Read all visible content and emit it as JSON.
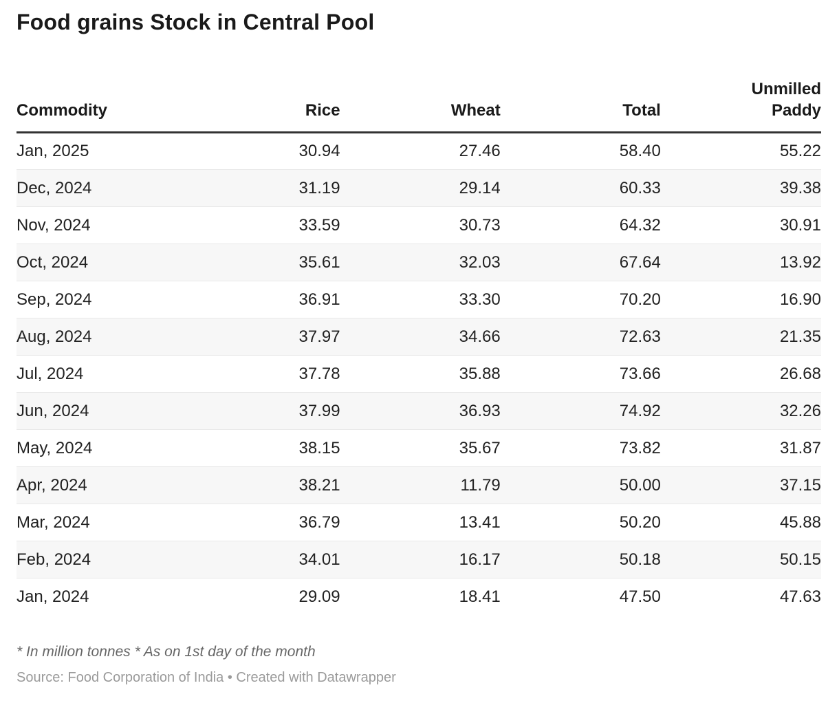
{
  "title": "Food grains Stock in Central Pool",
  "table": {
    "columns": [
      "Commodity",
      "Rice",
      "Wheat",
      "Total",
      "Unmilled Paddy"
    ],
    "rows": [
      {
        "month": "Jan, 2025",
        "rice": "30.94",
        "wheat": "27.46",
        "total": "58.40",
        "unmilled_paddy": "55.22"
      },
      {
        "month": "Dec, 2024",
        "rice": "31.19",
        "wheat": "29.14",
        "total": "60.33",
        "unmilled_paddy": "39.38"
      },
      {
        "month": "Nov, 2024",
        "rice": "33.59",
        "wheat": "30.73",
        "total": "64.32",
        "unmilled_paddy": "30.91"
      },
      {
        "month": "Oct, 2024",
        "rice": "35.61",
        "wheat": "32.03",
        "total": "67.64",
        "unmilled_paddy": "13.92"
      },
      {
        "month": "Sep, 2024",
        "rice": "36.91",
        "wheat": "33.30",
        "total": "70.20",
        "unmilled_paddy": "16.90"
      },
      {
        "month": "Aug, 2024",
        "rice": "37.97",
        "wheat": "34.66",
        "total": "72.63",
        "unmilled_paddy": "21.35"
      },
      {
        "month": "Jul, 2024",
        "rice": "37.78",
        "wheat": "35.88",
        "total": "73.66",
        "unmilled_paddy": "26.68"
      },
      {
        "month": "Jun, 2024",
        "rice": "37.99",
        "wheat": "36.93",
        "total": "74.92",
        "unmilled_paddy": "32.26"
      },
      {
        "month": "May, 2024",
        "rice": "38.15",
        "wheat": "35.67",
        "total": "73.82",
        "unmilled_paddy": "31.87"
      },
      {
        "month": "Apr, 2024",
        "rice": "38.21",
        "wheat": "11.79",
        "total": "50.00",
        "unmilled_paddy": "37.15"
      },
      {
        "month": "Mar, 2024",
        "rice": "36.79",
        "wheat": "13.41",
        "total": "50.20",
        "unmilled_paddy": "45.88"
      },
      {
        "month": "Feb, 2024",
        "rice": "34.01",
        "wheat": "16.17",
        "total": "50.18",
        "unmilled_paddy": "50.15"
      },
      {
        "month": "Jan, 2024",
        "rice": "29.09",
        "wheat": "18.41",
        "total": "47.50",
        "unmilled_paddy": "47.63"
      }
    ]
  },
  "footnote": "* In million tonnes * As on 1st day of the month",
  "source": "Source: Food Corporation of India • Created with Datawrapper",
  "colors": {
    "header_border": "#333333",
    "row_divider": "#e8e8e8",
    "zebra_row": "#f7f7f7",
    "title_text": "#1a1a1a",
    "body_text": "#222222",
    "footnote_text": "#666666",
    "source_text": "#9a9a9a"
  },
  "chart_data": {
    "type": "table",
    "title": "Food grains Stock in Central Pool",
    "categories": [
      "Jan, 2025",
      "Dec, 2024",
      "Nov, 2024",
      "Oct, 2024",
      "Sep, 2024",
      "Aug, 2024",
      "Jul, 2024",
      "Jun, 2024",
      "May, 2024",
      "Apr, 2024",
      "Mar, 2024",
      "Feb, 2024",
      "Jan, 2024"
    ],
    "series": [
      {
        "name": "Rice",
        "values": [
          30.94,
          31.19,
          33.59,
          35.61,
          36.91,
          37.97,
          37.78,
          37.99,
          38.15,
          38.21,
          36.79,
          34.01,
          29.09
        ]
      },
      {
        "name": "Wheat",
        "values": [
          27.46,
          29.14,
          30.73,
          32.03,
          33.3,
          34.66,
          35.88,
          36.93,
          35.67,
          11.79,
          13.41,
          16.17,
          18.41
        ]
      },
      {
        "name": "Total",
        "values": [
          58.4,
          60.33,
          64.32,
          67.64,
          70.2,
          72.63,
          73.66,
          74.92,
          73.82,
          50.0,
          50.2,
          50.18,
          47.5
        ]
      },
      {
        "name": "Unmilled Paddy",
        "values": [
          55.22,
          39.38,
          30.91,
          13.92,
          16.9,
          21.35,
          26.68,
          32.26,
          31.87,
          37.15,
          45.88,
          50.15,
          47.63
        ]
      }
    ],
    "notes": "* In million tonnes * As on 1st day of the month",
    "source": "Source: Food Corporation of India • Created with Datawrapper",
    "layout_hints": {
      "zebra_striping": true,
      "first_column": "months",
      "numeric_alignment": "right"
    }
  }
}
